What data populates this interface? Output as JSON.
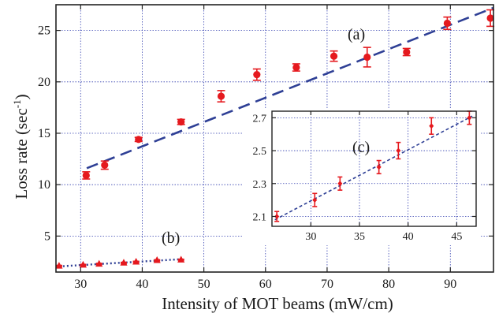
{
  "chart_data": [
    {
      "type": "scatter",
      "xlabel": "Intensity of MOT beams (mW/cm)",
      "ylabel": "Loss rate (sec",
      "ylabel_sup": "-1",
      "ylabel_close": ")",
      "xlim": [
        26,
        97
      ],
      "ylim": [
        1.5,
        27.5
      ],
      "xticks": [
        30,
        40,
        50,
        60,
        70,
        80,
        90
      ],
      "yticks": [
        5,
        10,
        15,
        20,
        25
      ],
      "grid": true,
      "colors": {
        "points": "#e5191e",
        "fit": "#2e3f95",
        "grid": "#3440b0",
        "axis": "#222222"
      },
      "series": [
        {
          "label": "(a)",
          "marker": "circle",
          "x": [
            30.9,
            33.9,
            39.4,
            46.3,
            52.8,
            58.6,
            65.0,
            71.1,
            76.5,
            82.9,
            89.5,
            96.5
          ],
          "y": [
            10.9,
            11.9,
            14.4,
            16.1,
            18.6,
            20.7,
            21.4,
            22.5,
            22.4,
            22.9,
            25.7,
            26.2
          ],
          "err": [
            0.35,
            0.4,
            0.2,
            0.25,
            0.55,
            0.55,
            0.35,
            0.5,
            0.95,
            0.35,
            0.6,
            0.8
          ],
          "fit": {
            "x": [
              31.0,
              97.0
            ],
            "y": [
              11.6,
              27.2
            ]
          }
        },
        {
          "label": "(b)",
          "marker": "triangle",
          "x": [
            26.5,
            30.4,
            33.0,
            37.0,
            39.0,
            42.4,
            46.3
          ],
          "y": [
            2.1,
            2.2,
            2.3,
            2.4,
            2.5,
            2.65,
            2.7
          ],
          "err": [
            0.05,
            0.05,
            0.05,
            0.05,
            0.05,
            0.05,
            0.05
          ],
          "fit": {
            "x": [
              26.5,
              46.3
            ],
            "y": [
              2.05,
              2.75
            ]
          }
        }
      ]
    },
    {
      "type": "scatter",
      "label": "(c)",
      "inset": true,
      "xlim": [
        26,
        47
      ],
      "ylim": [
        2.04,
        2.74
      ],
      "xticks": [
        30,
        35,
        40,
        45
      ],
      "yticks": [
        2.1,
        2.3,
        2.5,
        2.7
      ],
      "grid": true,
      "series": [
        {
          "marker": "diamond",
          "x": [
            26.5,
            30.4,
            33.0,
            37.0,
            39.0,
            42.4,
            46.3
          ],
          "y": [
            2.1,
            2.2,
            2.3,
            2.4,
            2.5,
            2.65,
            2.7
          ],
          "err": [
            0.03,
            0.04,
            0.04,
            0.04,
            0.05,
            0.05,
            0.04
          ],
          "fit": {
            "x": [
              26.3,
              46.6
            ],
            "y": [
              2.08,
              2.71
            ]
          }
        }
      ]
    }
  ]
}
